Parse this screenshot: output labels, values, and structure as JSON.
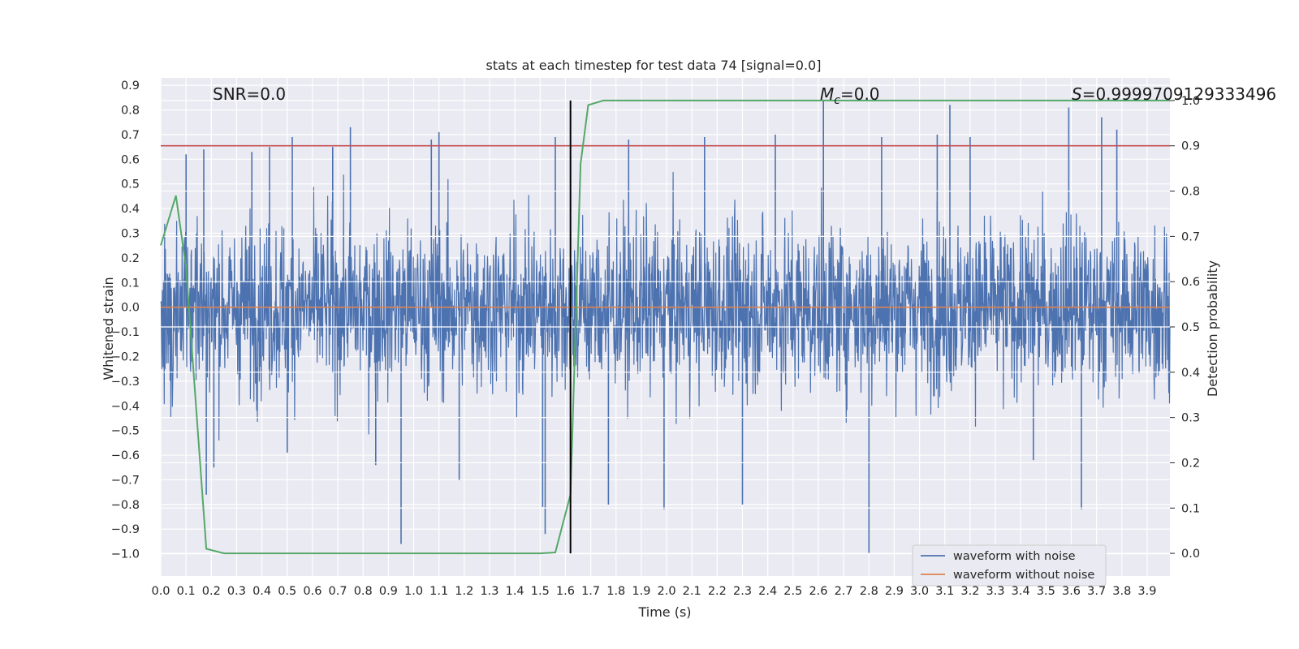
{
  "chart_data": {
    "type": "line",
    "title": "stats at each timestep for test data 74 [signal=0.0]",
    "xlabel": "Time (s)",
    "ylabel": "Whitened strain",
    "ylabel_right": "Detection probability",
    "xlim": [
      0.0,
      3.99
    ],
    "ylim": [
      -1.09,
      0.93
    ],
    "ylim_right": [
      -0.05,
      1.05
    ],
    "x_ticks": [
      "0.0",
      "0.1",
      "0.2",
      "0.3",
      "0.4",
      "0.5",
      "0.6",
      "0.7",
      "0.8",
      "0.9",
      "1.0",
      "1.1",
      "1.2",
      "1.3",
      "1.4",
      "1.5",
      "1.6",
      "1.7",
      "1.8",
      "1.9",
      "2.0",
      "2.1",
      "2.2",
      "2.3",
      "2.4",
      "2.5",
      "2.6",
      "2.7",
      "2.8",
      "2.9",
      "3.0",
      "3.1",
      "3.2",
      "3.3",
      "3.4",
      "3.5",
      "3.6",
      "3.7",
      "3.8",
      "3.9"
    ],
    "y_ticks": [
      "0.9",
      "0.8",
      "0.7",
      "0.6",
      "0.5",
      "0.4",
      "0.3",
      "0.2",
      "0.1",
      "0.0",
      "−0.1",
      "−0.2",
      "−0.3",
      "−0.4",
      "−0.5",
      "−0.6",
      "−0.7",
      "−0.8",
      "−0.9",
      "−1.0"
    ],
    "y_ticks_right": [
      "1.0",
      "0.9",
      "0.8",
      "0.7",
      "0.6",
      "0.5",
      "0.4",
      "0.3",
      "0.2",
      "0.1",
      "0.0"
    ],
    "annotations": {
      "snr": "SNR=0.0",
      "mc_symbol": "M",
      "mc_sub": "c",
      "mc_value": "=0.0",
      "s_symbol": "S",
      "s_value": "=0.9999709129333496"
    },
    "series": [
      {
        "name": "waveform with noise",
        "color": "#4c72b0",
        "note": "whitened noise, amplitude roughly ±0.45 with peaks up to 0.84 and down to −1.0"
      },
      {
        "name": "waveform without noise",
        "color": "#dd8452",
        "values_constant": 0.0
      },
      {
        "name": "detection probability",
        "color": "#55a868",
        "axis": "right",
        "x": [
          0.0,
          0.06,
          0.1,
          0.18,
          0.25,
          0.5,
          1.0,
          1.5,
          1.56,
          1.62,
          1.66,
          1.69,
          1.75,
          2.0,
          3.0,
          3.99
        ],
        "values": [
          0.68,
          0.79,
          0.63,
          0.01,
          0.0,
          0.0,
          0.0,
          0.0,
          0.002,
          0.13,
          0.86,
          0.99,
          1.0,
          1.0,
          1.0,
          1.0
        ]
      }
    ],
    "threshold_line": {
      "axis": "right",
      "value": 0.9,
      "color": "#c44e52"
    },
    "vertical_line": {
      "x": 1.62,
      "color": "#000000"
    },
    "noise_peaks": [
      {
        "x": 0.1,
        "y": 0.62
      },
      {
        "x": 0.17,
        "y": 0.64
      },
      {
        "x": 0.18,
        "y": -0.76
      },
      {
        "x": 0.21,
        "y": -0.65
      },
      {
        "x": 0.36,
        "y": 0.63
      },
      {
        "x": 0.43,
        "y": 0.65
      },
      {
        "x": 0.52,
        "y": 0.69
      },
      {
        "x": 0.5,
        "y": -0.59
      },
      {
        "x": 0.68,
        "y": 0.65
      },
      {
        "x": 0.75,
        "y": 0.73
      },
      {
        "x": 0.85,
        "y": -0.64
      },
      {
        "x": 0.95,
        "y": -0.96
      },
      {
        "x": 1.07,
        "y": 0.68
      },
      {
        "x": 1.1,
        "y": 0.71
      },
      {
        "x": 1.18,
        "y": -0.7
      },
      {
        "x": 1.51,
        "y": -0.81
      },
      {
        "x": 1.52,
        "y": -0.92
      },
      {
        "x": 1.56,
        "y": 0.69
      },
      {
        "x": 1.77,
        "y": -0.8
      },
      {
        "x": 1.85,
        "y": 0.68
      },
      {
        "x": 1.99,
        "y": -0.82
      },
      {
        "x": 2.15,
        "y": 0.69
      },
      {
        "x": 2.3,
        "y": -0.8
      },
      {
        "x": 2.43,
        "y": 0.7
      },
      {
        "x": 2.62,
        "y": 0.84
      },
      {
        "x": 2.8,
        "y": -1.0
      },
      {
        "x": 2.85,
        "y": 0.69
      },
      {
        "x": 3.07,
        "y": 0.7
      },
      {
        "x": 3.12,
        "y": 0.82
      },
      {
        "x": 3.2,
        "y": 0.69
      },
      {
        "x": 3.45,
        "y": -0.62
      },
      {
        "x": 3.59,
        "y": 0.81
      },
      {
        "x": 3.64,
        "y": -0.82
      },
      {
        "x": 3.72,
        "y": 0.77
      },
      {
        "x": 3.78,
        "y": 0.72
      }
    ],
    "grid": true,
    "legend": {
      "position": "lower-right",
      "entries": [
        "waveform with noise",
        "waveform without noise"
      ]
    },
    "colors": {
      "plot_background": "#eaeaf2",
      "grid": "#ffffff"
    }
  }
}
